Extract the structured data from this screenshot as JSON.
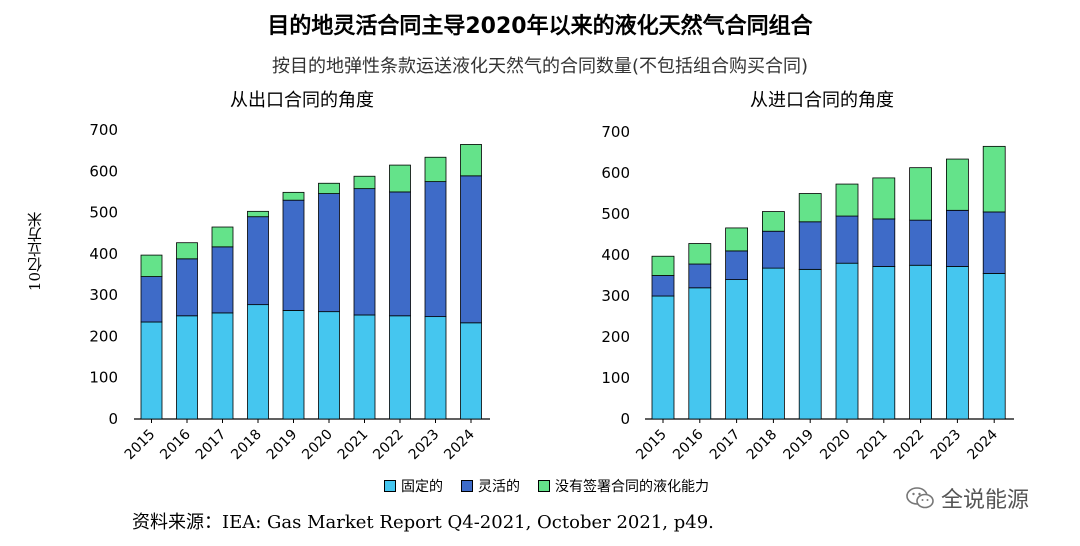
{
  "title": "目的地灵活合同主导2020年以来的液化天然气合同组合",
  "subtitle": "按目的地弹性条款运送液化天然气的合同数量(不包括组合购买合同)",
  "y_axis_label": "10亿立方米",
  "source": "资料来源：IEA: Gas Market Report Q4-2021, October 2021, p49.",
  "watermark": "全说能源",
  "colors": {
    "fixed": "#45c6ef",
    "flexible": "#3e6bc8",
    "unsigned": "#64e38a"
  },
  "legend": {
    "fixed": "固定的",
    "flexible": "灵活的",
    "unsigned": "没有签署合同的液化能力"
  },
  "chart_data": [
    {
      "type": "bar",
      "stacked": true,
      "title": "从出口合同的角度",
      "categories": [
        "2015",
        "2016",
        "2017",
        "2018",
        "2019",
        "2020",
        "2021",
        "2022",
        "2023",
        "2024"
      ],
      "ylim": [
        0,
        700
      ],
      "yticks": [
        0,
        100,
        200,
        300,
        400,
        500,
        600,
        700
      ],
      "series": [
        {
          "name": "固定的",
          "values": [
            235,
            250,
            257,
            277,
            263,
            260,
            252,
            250,
            248,
            233
          ]
        },
        {
          "name": "灵活的",
          "values": [
            110,
            138,
            160,
            213,
            267,
            286,
            306,
            300,
            327,
            356
          ]
        },
        {
          "name": "没有签署合同的液化能力",
          "values": [
            52,
            39,
            48,
            13,
            19,
            25,
            30,
            65,
            59,
            76
          ]
        }
      ]
    },
    {
      "type": "bar",
      "stacked": true,
      "title": "从进口合同的角度",
      "categories": [
        "2015",
        "2016",
        "2017",
        "2018",
        "2019",
        "2020",
        "2021",
        "2022",
        "2023",
        "2024"
      ],
      "ylim": [
        0,
        700
      ],
      "yticks": [
        0,
        100,
        200,
        300,
        400,
        500,
        600,
        700
      ],
      "series": [
        {
          "name": "固定的",
          "values": [
            300,
            320,
            340,
            368,
            365,
            380,
            372,
            375,
            372,
            355
          ]
        },
        {
          "name": "灵活的",
          "values": [
            50,
            58,
            70,
            90,
            116,
            115,
            116,
            110,
            137,
            150
          ]
        },
        {
          "name": "没有签署合同的液化能力",
          "values": [
            47,
            50,
            56,
            48,
            69,
            78,
            100,
            128,
            125,
            160
          ]
        }
      ]
    }
  ]
}
